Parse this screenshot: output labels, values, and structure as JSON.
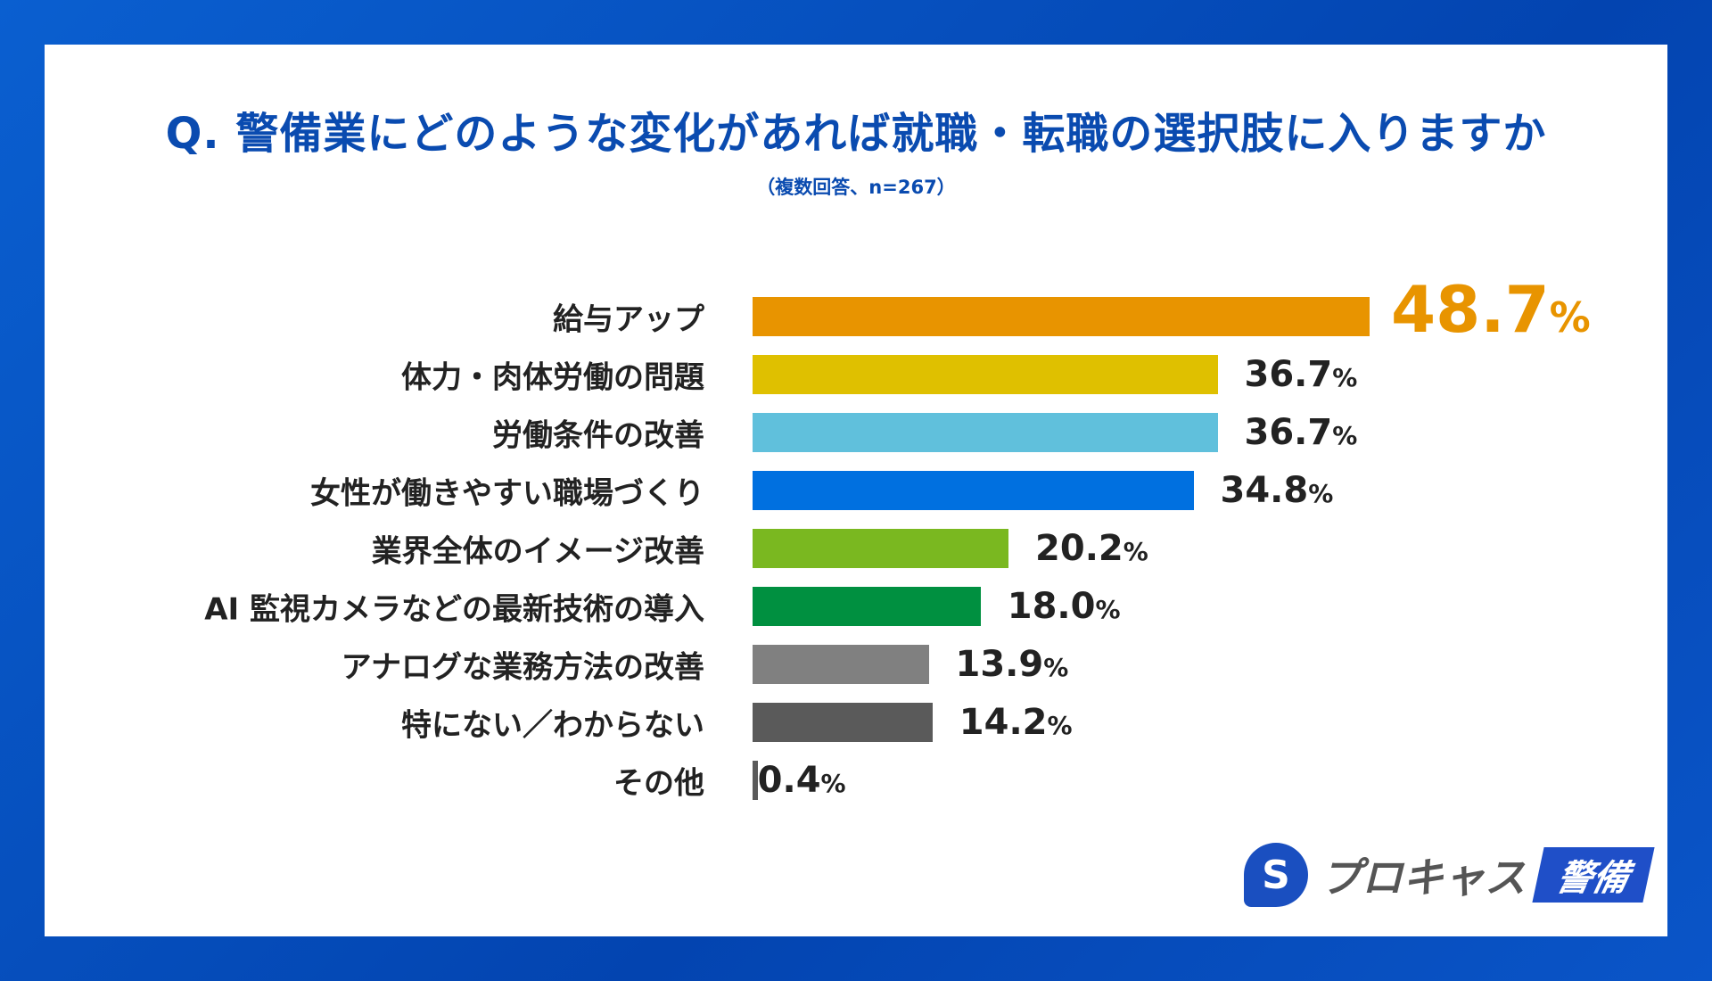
{
  "chart_data": {
    "type": "bar",
    "orientation": "horizontal",
    "title": "Q. 警備業にどのような変化があれば就職・転職の選択肢に入りますか",
    "subtitle": "（複数回答、n=267）",
    "categories": [
      "給与アップ",
      "体力・肉体労働の問題",
      "労働条件の改善",
      "女性が働きやすい職場づくり",
      "業界全体のイメージ改善",
      "AI 監視カメラなどの最新技術の導入",
      "アナログな業務方法の改善",
      "特にない／わからない",
      "その他"
    ],
    "values": [
      48.7,
      36.7,
      36.7,
      34.8,
      20.2,
      18.0,
      13.9,
      14.2,
      0.4
    ],
    "value_labels": [
      "48.7",
      "36.7",
      "36.7",
      "34.8",
      "20.2",
      "18.0",
      "13.9",
      "14.2",
      "0.4"
    ],
    "unit": "%",
    "colors": [
      "#E89400",
      "#DFC000",
      "#60C0DC",
      "#0070E0",
      "#7AB820",
      "#009040",
      "#808080",
      "#5A5A5A",
      "#5A5A5A"
    ],
    "highlight_color": "#E89400",
    "grid": false
  },
  "logo": {
    "mark": "S",
    "text": "プロキャス",
    "badge": "警備"
  }
}
